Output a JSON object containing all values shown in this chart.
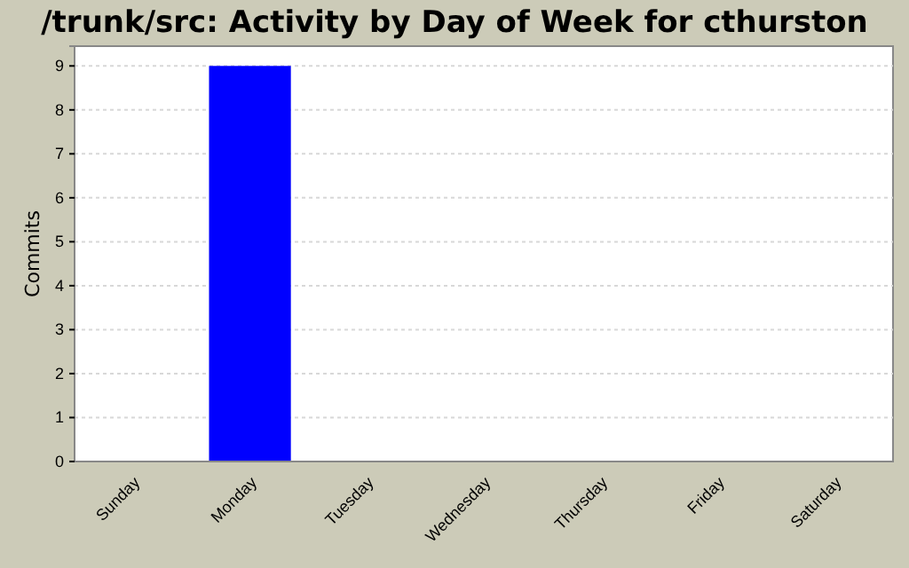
{
  "chart_data": {
    "type": "bar",
    "title": "/trunk/src: Activity by Day of Week for cthurston",
    "ylabel": "Commits",
    "categories": [
      "Sunday",
      "Monday",
      "Tuesday",
      "Wednesday",
      "Thursday",
      "Friday",
      "Saturday"
    ],
    "values": [
      0,
      9,
      0,
      0,
      0,
      0,
      0
    ],
    "color": "#0000ff",
    "ylim": [
      0,
      9.45
    ],
    "yticks": [
      0,
      1,
      2,
      3,
      4,
      5,
      6,
      7,
      8,
      9
    ],
    "grid": "y"
  }
}
